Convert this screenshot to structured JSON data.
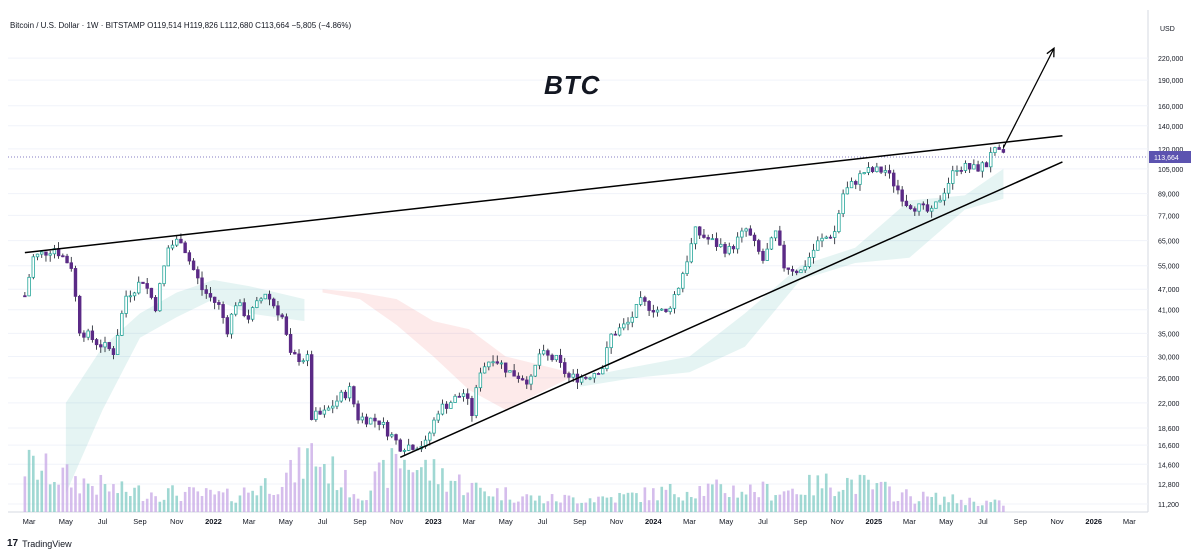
{
  "header": {
    "symbol_line": "Bitcoin / U.S. Dollar · 1W · BITSTAMP",
    "ohlc": "O119,514 H119,826 L112,680 C113,664",
    "change": "−5,805 (−4.86%)"
  },
  "annotation": {
    "title": "BTC"
  },
  "branding": {
    "logo_text": "TradingView",
    "logo_mark": "17"
  },
  "chart_data": {
    "type": "candlestick",
    "title": "Bitcoin / U.S. Dollar · 1W · BITSTAMP",
    "currency_label": "USD",
    "last_price_label": "113,664",
    "y_scale": "log",
    "y_ticks": [
      "220,000",
      "190,000",
      "160,000",
      "140,000",
      "120,000",
      "105,000",
      "89,000",
      "77,000",
      "65,000",
      "55,000",
      "47,000",
      "41,000",
      "35,000",
      "30,000",
      "26,000",
      "22,000",
      "18,600",
      "16,600",
      "14,600",
      "12,800",
      "11,200"
    ],
    "x_ticks": [
      "Mar",
      "May",
      "Jul",
      "Sep",
      "Nov",
      "2022",
      "Mar",
      "May",
      "Jul",
      "Sep",
      "Nov",
      "2023",
      "Mar",
      "May",
      "Jul",
      "Sep",
      "Nov",
      "2024",
      "Mar",
      "May",
      "Jul",
      "Sep",
      "Nov",
      "2025",
      "Mar",
      "May",
      "Jul",
      "Sep",
      "Nov",
      "2026",
      "Mar"
    ],
    "price_path": [
      [
        "2021-02-22",
        45000
      ],
      [
        "2021-03-08",
        58000
      ],
      [
        "2021-04-12",
        62000
      ],
      [
        "2021-05-10",
        55000
      ],
      [
        "2021-05-24",
        36000
      ],
      [
        "2021-06-21",
        33000
      ],
      [
        "2021-07-19",
        31000
      ],
      [
        "2021-08-09",
        45000
      ],
      [
        "2021-09-06",
        50000
      ],
      [
        "2021-09-27",
        42000
      ],
      [
        "2021-10-18",
        62000
      ],
      [
        "2021-11-08",
        66000
      ],
      [
        "2021-11-22",
        57000
      ],
      [
        "2021-12-13",
        47000
      ],
      [
        "2022-01-10",
        42000
      ],
      [
        "2022-01-24",
        36000
      ],
      [
        "2022-02-07",
        43000
      ],
      [
        "2022-02-28",
        39000
      ],
      [
        "2022-03-28",
        46000
      ],
      [
        "2022-04-25",
        39000
      ],
      [
        "2022-05-09",
        30000
      ],
      [
        "2022-06-06",
        29500
      ],
      [
        "2022-06-13",
        20000
      ],
      [
        "2022-07-04",
        20500
      ],
      [
        "2022-08-01",
        23000
      ],
      [
        "2022-08-15",
        24000
      ],
      [
        "2022-08-29",
        20000
      ],
      [
        "2022-10-03",
        19500
      ],
      [
        "2022-11-07",
        16500
      ],
      [
        "2022-12-19",
        16700
      ],
      [
        "2023-01-09",
        21000
      ],
      [
        "2023-02-20",
        23500
      ],
      [
        "2023-03-06",
        20500
      ],
      [
        "2023-03-20",
        27500
      ],
      [
        "2023-04-10",
        30000
      ],
      [
        "2023-05-08",
        27000
      ],
      [
        "2023-06-12",
        25500
      ],
      [
        "2023-06-26",
        30500
      ],
      [
        "2023-07-24",
        29300
      ],
      [
        "2023-08-14",
        26000
      ],
      [
        "2023-09-11",
        26200
      ],
      [
        "2023-10-09",
        28000
      ],
      [
        "2023-10-23",
        34500
      ],
      [
        "2023-11-20",
        37500
      ],
      [
        "2023-12-11",
        43000
      ],
      [
        "2024-01-22",
        40000
      ],
      [
        "2024-02-12",
        48000
      ],
      [
        "2024-03-04",
        63000
      ],
      [
        "2024-03-11",
        69000
      ],
      [
        "2024-04-15",
        63500
      ],
      [
        "2024-05-06",
        61000
      ],
      [
        "2024-06-03",
        70000
      ],
      [
        "2024-07-01",
        57000
      ],
      [
        "2024-07-22",
        68000
      ],
      [
        "2024-08-05",
        55000
      ],
      [
        "2024-09-02",
        53000
      ],
      [
        "2024-09-30",
        64000
      ],
      [
        "2024-10-28",
        69000
      ],
      [
        "2024-11-11",
        89000
      ],
      [
        "2024-12-16",
        103000
      ],
      [
        "2025-01-20",
        104000
      ],
      [
        "2025-02-24",
        84000
      ],
      [
        "2025-04-07",
        78000
      ],
      [
        "2025-05-19",
        107000
      ],
      [
        "2025-06-16",
        105000
      ],
      [
        "2025-07-07",
        108000
      ],
      [
        "2025-07-14",
        119000
      ],
      [
        "2025-08-04",
        114000
      ]
    ],
    "volume_path": [
      [
        "2021-02-22",
        0.45
      ],
      [
        "2021-05-17",
        0.3
      ],
      [
        "2021-08-02",
        0.2
      ],
      [
        "2021-11-01",
        0.18
      ],
      [
        "2022-02-01",
        0.15
      ],
      [
        "2022-05-09",
        0.35
      ],
      [
        "2022-06-13",
        0.55
      ],
      [
        "2022-09-01",
        0.16
      ],
      [
        "2022-11-07",
        0.5
      ],
      [
        "2023-03-13",
        0.22
      ],
      [
        "2023-07-01",
        0.12
      ],
      [
        "2023-11-01",
        0.14
      ],
      [
        "2024-03-11",
        0.22
      ],
      [
        "2024-08-05",
        0.2
      ],
      [
        "2024-11-11",
        0.3
      ],
      [
        "2025-03-01",
        0.15
      ],
      [
        "2025-08-04",
        0.08
      ]
    ],
    "resistance_line": {
      "from": [
        "2021-02-22",
        60000
      ],
      "to": [
        "2025-11-10",
        131000
      ]
    },
    "support_line": {
      "from": [
        "2022-11-07",
        15300
      ],
      "to": [
        "2025-11-10",
        110000
      ]
    },
    "breakout_arrow": {
      "from": [
        "2025-08-04",
        121000
      ],
      "to": [
        "2025-10-27",
        235000
      ]
    },
    "cloud_bands": [
      {
        "color": "#ef5350",
        "opacity": 0.12,
        "from": "2022-07-01",
        "to": "2023-08-15",
        "upper": [
          [
            "2022-07-01",
            47000
          ],
          [
            "2022-09-01",
            46000
          ],
          [
            "2022-11-01",
            44000
          ],
          [
            "2023-01-01",
            38000
          ],
          [
            "2023-03-01",
            36000
          ],
          [
            "2023-05-01",
            30000
          ],
          [
            "2023-08-15",
            27000
          ]
        ],
        "lower": [
          [
            "2022-07-01",
            46000
          ],
          [
            "2022-09-01",
            44000
          ],
          [
            "2022-11-01",
            37000
          ],
          [
            "2023-01-01",
            30000
          ],
          [
            "2023-03-01",
            24000
          ],
          [
            "2023-05-01",
            21000
          ],
          [
            "2023-08-15",
            26000
          ]
        ]
      },
      {
        "color": "#26a69a",
        "opacity": 0.12,
        "from": "2021-05-01",
        "to": "2022-06-01",
        "upper": [
          [
            "2021-05-01",
            22000
          ],
          [
            "2021-07-01",
            32000
          ],
          [
            "2021-09-01",
            40000
          ],
          [
            "2021-11-01",
            46000
          ],
          [
            "2022-01-01",
            50000
          ],
          [
            "2022-03-01",
            48000
          ],
          [
            "2022-06-01",
            44000
          ]
        ],
        "lower": [
          [
            "2021-05-01",
            12000
          ],
          [
            "2021-07-01",
            21000
          ],
          [
            "2021-09-01",
            34000
          ],
          [
            "2021-11-01",
            39000
          ],
          [
            "2022-01-01",
            44000
          ],
          [
            "2022-03-01",
            40000
          ],
          [
            "2022-06-01",
            38000
          ]
        ]
      },
      {
        "color": "#26a69a",
        "opacity": 0.12,
        "from": "2023-09-01",
        "to": "2025-08-04",
        "upper": [
          [
            "2023-09-01",
            26000
          ],
          [
            "2023-12-01",
            28000
          ],
          [
            "2024-03-01",
            30000
          ],
          [
            "2024-06-01",
            40000
          ],
          [
            "2024-09-01",
            55000
          ],
          [
            "2024-12-01",
            62000
          ],
          [
            "2025-03-01",
            85000
          ],
          [
            "2025-06-01",
            88000
          ],
          [
            "2025-08-04",
            105000
          ]
        ],
        "lower": [
          [
            "2023-09-01",
            24500
          ],
          [
            "2023-12-01",
            26000
          ],
          [
            "2024-03-01",
            27000
          ],
          [
            "2024-06-01",
            32000
          ],
          [
            "2024-09-01",
            50000
          ],
          [
            "2024-12-01",
            56000
          ],
          [
            "2025-03-01",
            58000
          ],
          [
            "2025-06-01",
            80000
          ],
          [
            "2025-08-04",
            86000
          ]
        ]
      }
    ]
  },
  "colors": {
    "up": "#26a69a",
    "down": "#5b2a86",
    "wick": "#131722",
    "vol_up": "#80cbc4",
    "vol_down": "#c7a7e6",
    "price_label_bg": "#5c53b0",
    "grid": "#f0f3fa",
    "line": "#000000"
  }
}
